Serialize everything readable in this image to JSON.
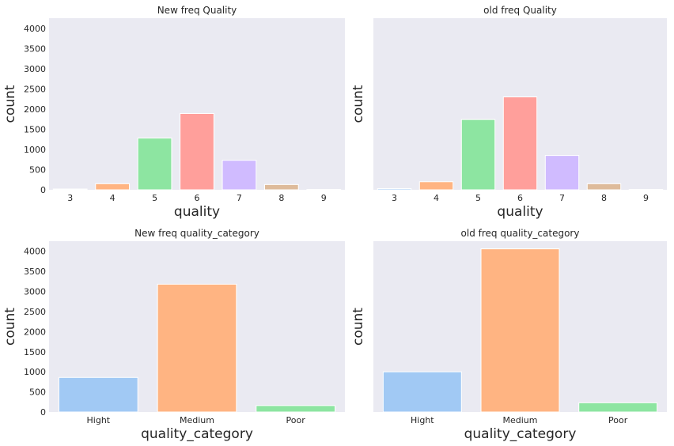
{
  "chart_data": [
    {
      "type": "bar",
      "title": "New freq Quality",
      "xlabel": "quality",
      "ylabel": "count",
      "categories": [
        "3",
        "4",
        "5",
        "6",
        "7",
        "8",
        "9"
      ],
      "values": [
        20,
        150,
        1280,
        1890,
        730,
        130,
        10
      ],
      "colors": [
        "#a1c9f4",
        "#ffb482",
        "#8de5a1",
        "#ff9f9b",
        "#d0bbff",
        "#debb9b",
        "#fab0e4"
      ],
      "ylim": [
        0,
        4250
      ],
      "yticks": [
        0,
        500,
        1000,
        1500,
        2000,
        2500,
        3000,
        3500,
        4000
      ],
      "show_yticklabels": true
    },
    {
      "type": "bar",
      "title": "old freq Quality",
      "xlabel": "quality",
      "ylabel": "count",
      "categories": [
        "3",
        "4",
        "5",
        "6",
        "7",
        "8",
        "9"
      ],
      "values": [
        30,
        200,
        1740,
        2300,
        850,
        150,
        10
      ],
      "colors": [
        "#a1c9f4",
        "#ffb482",
        "#8de5a1",
        "#ff9f9b",
        "#d0bbff",
        "#debb9b",
        "#fab0e4"
      ],
      "ylim": [
        0,
        4250
      ],
      "yticks": [
        0,
        500,
        1000,
        1500,
        2000,
        2500,
        3000,
        3500,
        4000
      ],
      "show_yticklabels": false
    },
    {
      "type": "bar",
      "title": "New freq quality_category",
      "xlabel": "quality_category",
      "ylabel": "count",
      "categories": [
        "Hight",
        "Medium",
        "Poor"
      ],
      "values": [
        860,
        3180,
        160
      ],
      "colors": [
        "#a1c9f4",
        "#ffb482",
        "#8de5a1"
      ],
      "ylim": [
        0,
        4250
      ],
      "yticks": [
        0,
        500,
        1000,
        1500,
        2000,
        2500,
        3000,
        3500,
        4000
      ],
      "show_yticklabels": true
    },
    {
      "type": "bar",
      "title": "old freq quality_category",
      "xlabel": "quality_category",
      "ylabel": "count",
      "categories": [
        "Hight",
        "Medium",
        "Poor"
      ],
      "values": [
        1000,
        4060,
        230
      ],
      "colors": [
        "#a1c9f4",
        "#ffb482",
        "#8de5a1"
      ],
      "ylim": [
        0,
        4250
      ],
      "yticks": [
        0,
        500,
        1000,
        1500,
        2000,
        2500,
        3000,
        3500,
        4000
      ],
      "show_yticklabels": false
    }
  ],
  "style": {
    "background": "#eaeaf2",
    "gridlines": false
  }
}
